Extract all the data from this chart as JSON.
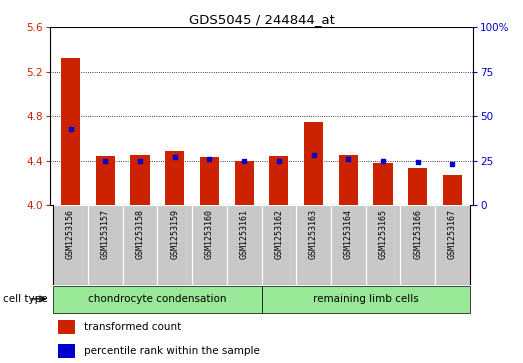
{
  "title": "GDS5045 / 244844_at",
  "samples": [
    "GSM1253156",
    "GSM1253157",
    "GSM1253158",
    "GSM1253159",
    "GSM1253160",
    "GSM1253161",
    "GSM1253162",
    "GSM1253163",
    "GSM1253164",
    "GSM1253165",
    "GSM1253166",
    "GSM1253167"
  ],
  "red_values": [
    5.32,
    4.44,
    4.45,
    4.49,
    4.43,
    4.4,
    4.44,
    4.75,
    4.45,
    4.38,
    4.33,
    4.27
  ],
  "blue_pct": [
    43,
    25,
    25,
    27,
    26,
    25,
    25,
    28,
    26,
    25,
    24,
    23
  ],
  "ylim_left": [
    4.0,
    5.6
  ],
  "ylim_right": [
    0,
    100
  ],
  "yticks_left": [
    4.0,
    4.4,
    4.8,
    5.2,
    5.6
  ],
  "yticks_right": [
    0,
    25,
    50,
    75,
    100
  ],
  "bar_color": "#cc2200",
  "dot_color": "#0000cc",
  "background_tick": "#c8c8c8",
  "group1_label": "chondrocyte condensation",
  "group2_label": "remaining limb cells",
  "group_color": "#98e898",
  "cell_type_label": "cell type",
  "legend1": "transformed count",
  "legend2": "percentile rank within the sample",
  "bar_width": 0.55,
  "baseline": 4.0,
  "n_group1": 6,
  "n_group2": 6
}
